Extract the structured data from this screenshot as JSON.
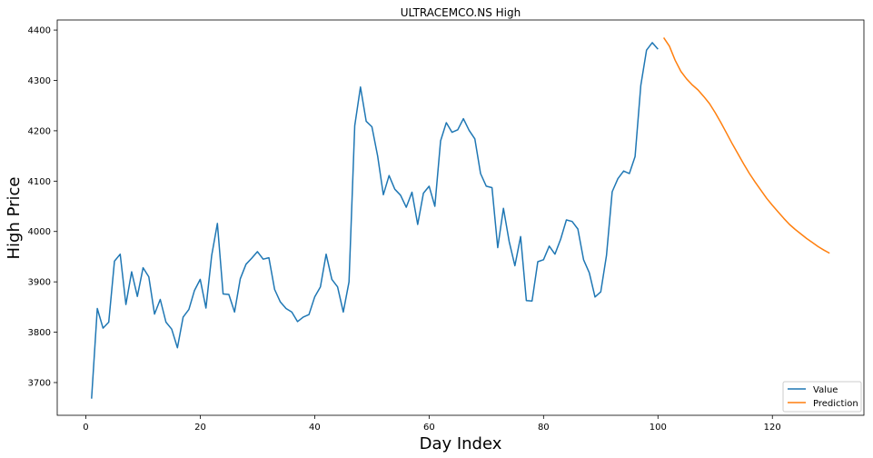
{
  "chart_data": {
    "type": "line",
    "title": "ULTRACEMCO.NS High",
    "xlabel": "Day Index",
    "ylabel": "High Price",
    "xlim": [
      -5,
      136
    ],
    "ylim": [
      3635,
      4420
    ],
    "xticks": [
      0,
      20,
      40,
      60,
      80,
      100,
      120
    ],
    "yticks": [
      3700,
      3800,
      3900,
      4000,
      4100,
      4200,
      4300,
      4400
    ],
    "grid": false,
    "legend_position": "lower-right",
    "series": [
      {
        "name": "Value",
        "color": "#1f77b4",
        "x": [
          1,
          2,
          3,
          4,
          5,
          6,
          7,
          8,
          9,
          10,
          11,
          12,
          13,
          14,
          15,
          16,
          17,
          18,
          19,
          20,
          21,
          22,
          23,
          24,
          25,
          26,
          27,
          28,
          29,
          30,
          31,
          32,
          33,
          34,
          35,
          36,
          37,
          38,
          39,
          40,
          41,
          42,
          43,
          44,
          45,
          46,
          47,
          48,
          49,
          50,
          51,
          52,
          53,
          54,
          55,
          56,
          57,
          58,
          59,
          60,
          61,
          62,
          63,
          64,
          65,
          66,
          67,
          68,
          69,
          70,
          71,
          72,
          73,
          74,
          75,
          76,
          77,
          78,
          79,
          80,
          81,
          82,
          83,
          84,
          85,
          86,
          87,
          88,
          89,
          90,
          91,
          92,
          93,
          94,
          95,
          96,
          97,
          98,
          99,
          100
        ],
        "values": [
          3668,
          3847,
          3808,
          3820,
          3941,
          3955,
          3855,
          3920,
          3871,
          3928,
          3910,
          3836,
          3865,
          3820,
          3806,
          3769,
          3830,
          3845,
          3883,
          3905,
          3848,
          3952,
          4016,
          3876,
          3875,
          3840,
          3906,
          3935,
          3947,
          3960,
          3945,
          3948,
          3885,
          3860,
          3847,
          3840,
          3821,
          3830,
          3835,
          3870,
          3890,
          3955,
          3905,
          3890,
          3840,
          3900,
          4210,
          4287,
          4219,
          4208,
          4150,
          4073,
          4111,
          4084,
          4072,
          4048,
          4078,
          4014,
          4076,
          4090,
          4050,
          4180,
          4216,
          4197,
          4202,
          4224,
          4201,
          4184,
          4115,
          4090,
          4087,
          3968,
          4046,
          3980,
          3932,
          3990,
          3863,
          3862,
          3940,
          3944,
          3971,
          3955,
          3985,
          4023,
          4020,
          4005,
          3944,
          3918,
          3870,
          3880,
          3952,
          4079,
          4105,
          4120,
          4115,
          4149,
          4290,
          4360,
          4375,
          4362
        ]
      },
      {
        "name": "Prediction",
        "color": "#ff7f0e",
        "x": [
          101,
          102,
          103,
          104,
          105,
          106,
          107,
          108,
          109,
          110,
          111,
          112,
          113,
          114,
          115,
          116,
          117,
          118,
          119,
          120,
          121,
          122,
          123,
          124,
          125,
          126,
          127,
          128,
          129,
          130
        ],
        "values": [
          4385,
          4368,
          4340,
          4318,
          4303,
          4291,
          4281,
          4268,
          4254,
          4236,
          4216,
          4195,
          4174,
          4154,
          4134,
          4115,
          4098,
          4082,
          4066,
          4052,
          4039,
          4026,
          4014,
          4004,
          3995,
          3986,
          3978,
          3970,
          3963,
          3957
        ]
      }
    ]
  }
}
